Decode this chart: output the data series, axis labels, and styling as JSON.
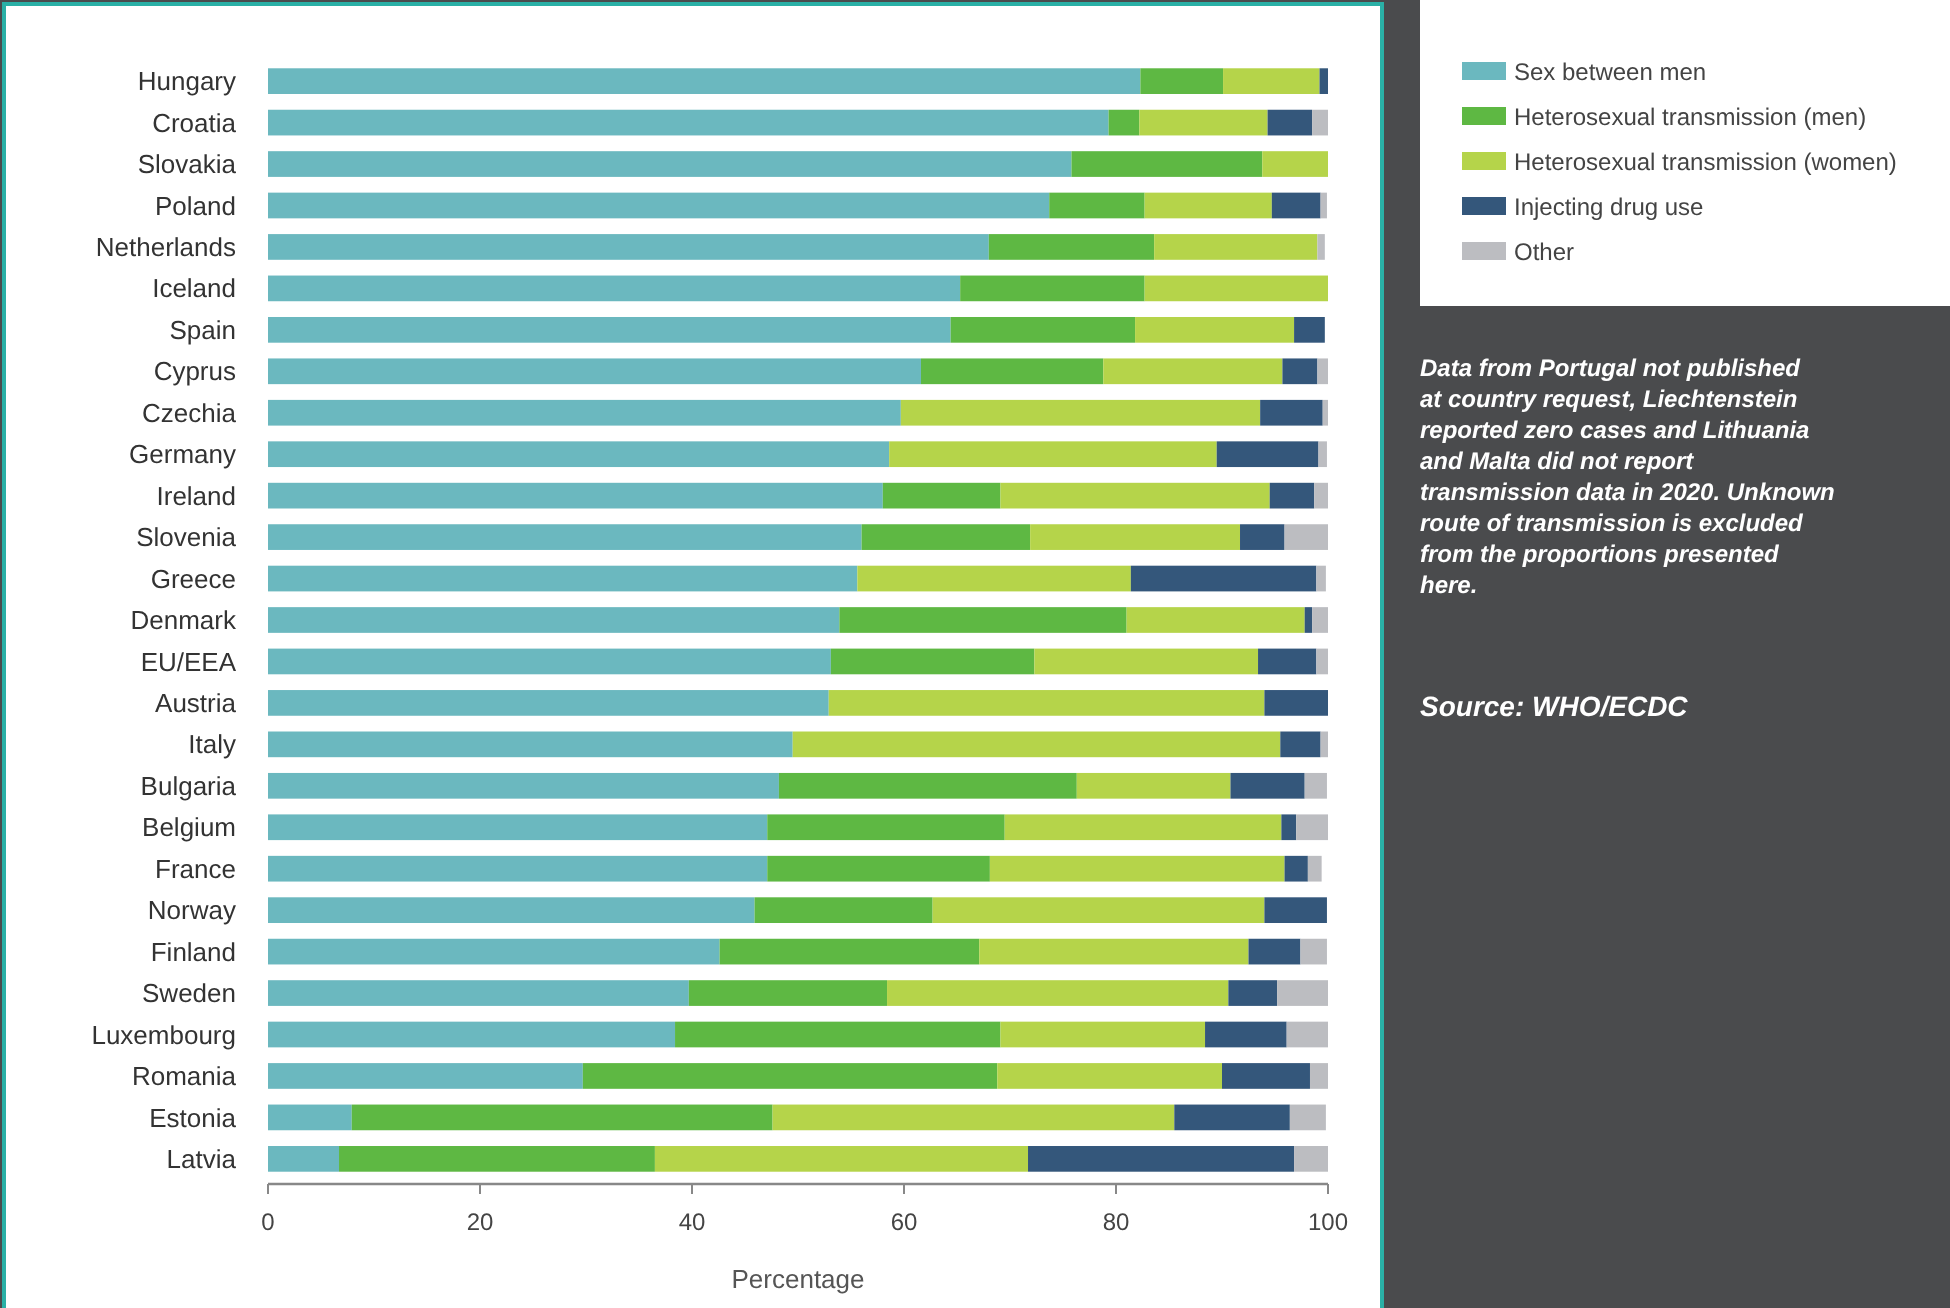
{
  "chart_data": {
    "type": "bar",
    "orientation": "horizontal",
    "stacked": true,
    "xlabel": "Percentage",
    "xlim": [
      0,
      100
    ],
    "xticks": [
      0,
      20,
      40,
      60,
      80,
      100
    ],
    "grid": false,
    "legend": "top right",
    "categories": [
      "Hungary",
      "Croatia",
      "Slovakia",
      "Poland",
      "Netherlands",
      "Iceland",
      "Spain",
      "Cyprus",
      "Czechia",
      "Germany",
      "Ireland",
      "Slovenia",
      "Greece",
      "Denmark",
      "EU/EEA",
      "Austria",
      "Italy",
      "Bulgaria",
      "Belgium",
      "France",
      "Norway",
      "Finland",
      "Sweden",
      "Luxembourg",
      "Romania",
      "Estonia",
      "Latvia"
    ],
    "series": [
      {
        "name": "Sex between men",
        "color": "#6bb8bf",
        "values": [
          82.3,
          79.3,
          75.8,
          73.7,
          68,
          65.3,
          64.4,
          61.6,
          59.7,
          58.6,
          58,
          56,
          55.6,
          53.9,
          53.1,
          52.9,
          49.5,
          48.2,
          47.1,
          47.1,
          45.9,
          42.6,
          39.7,
          38.4,
          29.7,
          7.9,
          6.7
        ]
      },
      {
        "name": "Heterosexual transmission (men)",
        "color": "#5eb843",
        "values": [
          7.8,
          2.9,
          18,
          9,
          15.6,
          17.4,
          17.4,
          17.2,
          0,
          0,
          11.1,
          15.9,
          0,
          27.1,
          19.2,
          0,
          0,
          28.1,
          22.4,
          21,
          16.8,
          24.5,
          18.7,
          30.7,
          39.1,
          39.7,
          29.8
        ]
      },
      {
        "name": "Heterosexual transmission (women)",
        "color": "#b5d44a",
        "values": [
          9.1,
          12.1,
          6.2,
          12,
          15.4,
          17.3,
          15,
          16.9,
          33.9,
          30.9,
          25.4,
          19.8,
          25.8,
          16.8,
          21.1,
          41.1,
          46,
          14.5,
          26.1,
          27.8,
          31.3,
          25.4,
          32.2,
          19.3,
          21.2,
          37.9,
          35.2
        ]
      },
      {
        "name": "Injecting drug use",
        "color": "#34577b",
        "values": [
          0.8,
          4.2,
          0,
          4.6,
          0,
          0,
          2.9,
          3.3,
          5.9,
          9.6,
          4.2,
          4.2,
          17.5,
          0.7,
          5.5,
          6,
          3.8,
          7,
          1.4,
          2.2,
          5.9,
          4.9,
          4.6,
          7.7,
          8.3,
          10.9,
          25.1
        ]
      },
      {
        "name": "Other",
        "color": "#bcbdc1",
        "values": [
          0,
          1.5,
          0,
          0.6,
          0.7,
          0,
          0,
          1,
          0.5,
          0.8,
          1.3,
          4.1,
          0.9,
          1.5,
          1.1,
          0,
          0.7,
          2.1,
          3,
          1.3,
          0,
          2.5,
          4.8,
          3.9,
          1.7,
          3.4,
          3.2
        ]
      }
    ],
    "annotations": [
      "Data from Portugal not published at country request, Liechtenstein reported zero cases and Lithuania and Malta did not report transmission data in 2020. Unknown route of transmission is excluded from the proportions presented here.",
      "Source: WHO/ECDC"
    ]
  }
}
